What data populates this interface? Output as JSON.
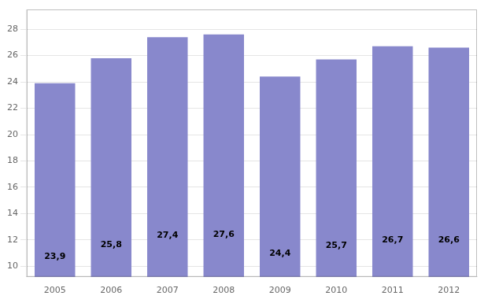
{
  "chart_data": {
    "type": "bar",
    "categories": [
      "2005",
      "2006",
      "2007",
      "2008",
      "2009",
      "2010",
      "2011",
      "2012"
    ],
    "values": [
      23.9,
      25.8,
      27.4,
      27.6,
      24.4,
      25.7,
      26.7,
      26.6
    ],
    "value_labels": [
      "23,9",
      "25,8",
      "27,4",
      "27,6",
      "24,4",
      "25,7",
      "26,7",
      "26,6"
    ],
    "data_labels": true,
    "color": "#8888cc",
    "ylim": [
      9.2,
      29.5
    ],
    "yticks": [
      10,
      12,
      14,
      16,
      18,
      20,
      22,
      24,
      26,
      28
    ],
    "grid": true
  }
}
